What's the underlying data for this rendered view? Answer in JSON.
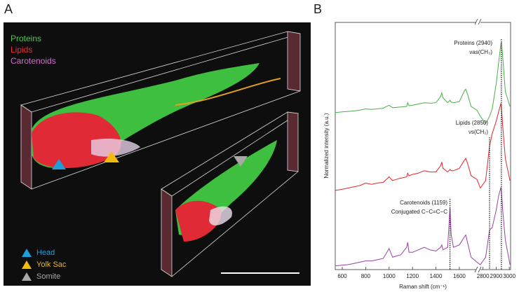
{
  "panel_a": {
    "label": "A",
    "channels": [
      {
        "name": "Proteins",
        "color": "#4fc64f"
      },
      {
        "name": "Lipids",
        "color": "#e8303a"
      },
      {
        "name": "Carotenoids",
        "color": "#d070c8"
      }
    ],
    "legend": [
      {
        "name": "Head",
        "color": "#1e9fd8"
      },
      {
        "name": "Yolk Sac",
        "color": "#f2b90f"
      },
      {
        "name": "Somite",
        "color": "#a8a8a8"
      }
    ]
  },
  "chart_data": {
    "type": "line",
    "label": "B",
    "x_label": "Raman shift (cm⁻¹)",
    "y_label": "Normalized intensity (a.u.)",
    "xlim": [
      540,
      3010
    ],
    "x_break": [
      1750,
      2775
    ],
    "xticks": [
      600,
      800,
      1000,
      1200,
      1400,
      1600,
      2800,
      2900,
      3000
    ],
    "ylim": [
      0,
      100
    ],
    "x": [
      540,
      600,
      650,
      700,
      750,
      800,
      850,
      900,
      950,
      1000,
      1030,
      1060,
      1100,
      1150,
      1159,
      1170,
      1200,
      1250,
      1300,
      1350,
      1400,
      1440,
      1450,
      1460,
      1500,
      1520,
      1530,
      1550,
      1600,
      1640,
      1655,
      1670,
      1700,
      1750,
      2780,
      2820,
      2850,
      2870,
      2900,
      2920,
      2935,
      2940,
      2950,
      2970,
      3005
    ],
    "series": [
      {
        "name": "Proteins",
        "color": "#49b048",
        "values": [
          63.5,
          63.8,
          64,
          64.2,
          64.5,
          65,
          64.8,
          65,
          65.3,
          66.5,
          65.5,
          65.6,
          65.8,
          66,
          67.5,
          66.3,
          66.5,
          67,
          67.5,
          67.3,
          67.5,
          70,
          71.5,
          69.5,
          67.5,
          68.5,
          67.8,
          67.5,
          68,
          72,
          73,
          71,
          66,
          64.5,
          62,
          59,
          62,
          65,
          75,
          84,
          91,
          92,
          86,
          72,
          66
        ]
      },
      {
        "name": "Lipids",
        "color": "#e0262b",
        "values": [
          32,
          32.5,
          33,
          33.5,
          34,
          35,
          34.5,
          35,
          35.3,
          37.5,
          36,
          36.5,
          37,
          37.5,
          39,
          38,
          38.5,
          39,
          40,
          39.5,
          39.5,
          42,
          43.5,
          41,
          39.5,
          40.5,
          40,
          40,
          41,
          44,
          45,
          43,
          38,
          36.5,
          33,
          36,
          50,
          55,
          60,
          64,
          67,
          66,
          58,
          45,
          36
        ]
      },
      {
        "name": "Carotenoids",
        "color": "#9b3fa3",
        "values": [
          1.5,
          1.8,
          2,
          2.5,
          3,
          3.5,
          3.5,
          4,
          4.5,
          8.5,
          5,
          5.5,
          6,
          9,
          11,
          7,
          7,
          8,
          9,
          8,
          7.5,
          9,
          10,
          8,
          9,
          25,
          14,
          9,
          10,
          13,
          14,
          11,
          5,
          3,
          2,
          5,
          16,
          17,
          24,
          30,
          33,
          32,
          24,
          12,
          2
        ]
      }
    ],
    "annotations": [
      {
        "x": 2940,
        "label": "Proteins (2940)",
        "mode": "νas(CH₃)"
      },
      {
        "x": 2850,
        "label": "Lipids (2850)",
        "mode": "νs(CH₂)"
      },
      {
        "x": 1520,
        "label": "Carotenoids (1159)",
        "mode": "Conjugated C−C=C−C"
      }
    ]
  }
}
